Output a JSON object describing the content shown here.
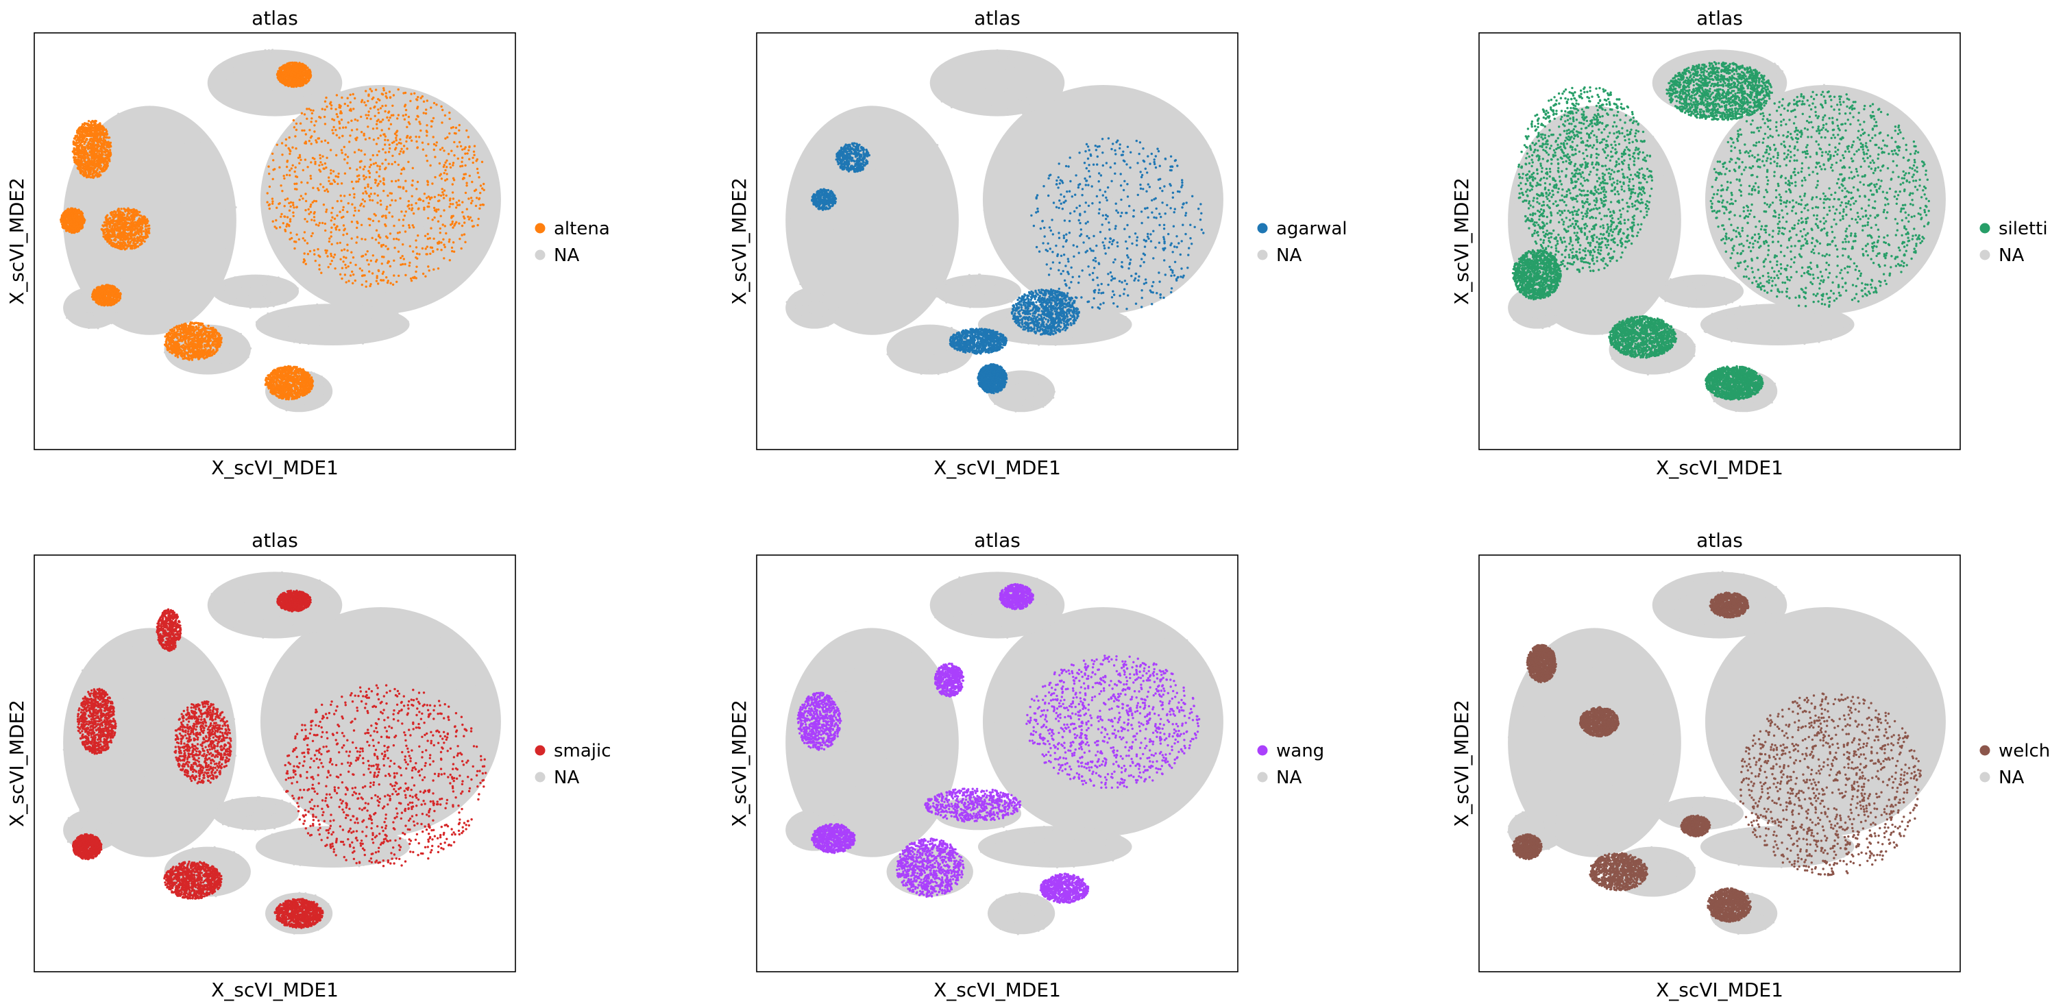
{
  "chart_data": [
    {
      "type": "scatter",
      "title": "atlas",
      "xlabel": "X_scVI_MDE1",
      "ylabel": "X_scVI_MDE2",
      "legend_position": "right",
      "grid": false,
      "ticks": false,
      "legend": [
        {
          "label": "altena",
          "color": "#ff7f0e"
        },
        {
          "label": "NA",
          "color": "#d3d3d3"
        }
      ],
      "highlight": {
        "label": "altena",
        "color": "#ff7f0e",
        "blobs": [
          [
            0.71,
            0.37,
            0.46,
            0.48,
            0.95
          ],
          [
            0.19,
            0.47,
            0.1,
            0.1,
            0.65
          ],
          [
            0.33,
            0.74,
            0.12,
            0.09,
            0.85
          ],
          [
            0.12,
            0.28,
            0.08,
            0.14,
            0.85
          ],
          [
            0.08,
            0.45,
            0.05,
            0.06,
            0.6
          ],
          [
            0.53,
            0.84,
            0.1,
            0.08,
            0.85
          ],
          [
            0.54,
            0.1,
            0.07,
            0.06,
            0.7
          ],
          [
            0.15,
            0.63,
            0.06,
            0.05,
            0.5
          ]
        ]
      }
    },
    {
      "type": "scatter",
      "title": "atlas",
      "xlabel": "X_scVI_MDE1",
      "ylabel": "X_scVI_MDE2",
      "legend_position": "right",
      "grid": false,
      "ticks": false,
      "legend": [
        {
          "label": "agarwal",
          "color": "#1f77b4"
        },
        {
          "label": "NA",
          "color": "#d3d3d3"
        }
      ],
      "highlight": {
        "label": "agarwal",
        "color": "#1f77b4",
        "blobs": [
          [
            0.75,
            0.46,
            0.36,
            0.42,
            0.35
          ],
          [
            0.6,
            0.67,
            0.14,
            0.11,
            0.6
          ],
          [
            0.46,
            0.74,
            0.12,
            0.06,
            0.55
          ],
          [
            0.49,
            0.83,
            0.06,
            0.07,
            0.6
          ],
          [
            0.2,
            0.3,
            0.07,
            0.07,
            0.25
          ],
          [
            0.14,
            0.4,
            0.05,
            0.05,
            0.2
          ]
        ]
      }
    },
    {
      "type": "scatter",
      "title": "atlas",
      "xlabel": "X_scVI_MDE1",
      "ylabel": "X_scVI_MDE2",
      "legend_position": "right",
      "grid": false,
      "ticks": false,
      "legend": [
        {
          "label": "siletti",
          "color": "#279e68"
        },
        {
          "label": "NA",
          "color": "#d3d3d3"
        }
      ],
      "highlight": {
        "label": "siletti",
        "color": "#279e68",
        "blobs": [
          [
            0.71,
            0.4,
            0.46,
            0.52,
            0.95
          ],
          [
            0.22,
            0.35,
            0.28,
            0.45,
            0.9
          ],
          [
            0.5,
            0.14,
            0.22,
            0.14,
            0.9
          ],
          [
            0.34,
            0.73,
            0.14,
            0.1,
            0.9
          ],
          [
            0.53,
            0.84,
            0.12,
            0.08,
            0.9
          ],
          [
            0.12,
            0.58,
            0.1,
            0.12,
            0.7
          ]
        ]
      }
    },
    {
      "type": "scatter",
      "title": "atlas",
      "xlabel": "X_scVI_MDE1",
      "ylabel": "X_scVI_MDE2",
      "legend_position": "right",
      "grid": false,
      "ticks": false,
      "legend": [
        {
          "label": "smajic",
          "color": "#d62728"
        },
        {
          "label": "NA",
          "color": "#d3d3d3"
        }
      ],
      "highlight": {
        "label": "smajic",
        "color": "#d62728",
        "blobs": [
          [
            0.73,
            0.53,
            0.42,
            0.44,
            0.85
          ],
          [
            0.35,
            0.45,
            0.12,
            0.2,
            0.65
          ],
          [
            0.33,
            0.78,
            0.12,
            0.09,
            0.8
          ],
          [
            0.13,
            0.4,
            0.08,
            0.16,
            0.7
          ],
          [
            0.55,
            0.86,
            0.1,
            0.07,
            0.8
          ],
          [
            0.11,
            0.7,
            0.06,
            0.06,
            0.6
          ],
          [
            0.54,
            0.11,
            0.07,
            0.05,
            0.6
          ],
          [
            0.28,
            0.18,
            0.05,
            0.1,
            0.4
          ]
        ]
      }
    },
    {
      "type": "scatter",
      "title": "atlas",
      "xlabel": "X_scVI_MDE1",
      "ylabel": "X_scVI_MDE2",
      "legend_position": "right",
      "grid": false,
      "ticks": false,
      "legend": [
        {
          "label": "wang",
          "color": "#aa40fc"
        },
        {
          "label": "NA",
          "color": "#d3d3d3"
        }
      ],
      "highlight": {
        "label": "wang",
        "color": "#aa40fc",
        "blobs": [
          [
            0.74,
            0.4,
            0.36,
            0.32,
            0.9
          ],
          [
            0.36,
            0.75,
            0.14,
            0.14,
            0.7
          ],
          [
            0.13,
            0.4,
            0.09,
            0.14,
            0.6
          ],
          [
            0.16,
            0.68,
            0.09,
            0.07,
            0.6
          ],
          [
            0.45,
            0.6,
            0.2,
            0.08,
            0.5
          ],
          [
            0.64,
            0.8,
            0.1,
            0.07,
            0.6
          ],
          [
            0.54,
            0.1,
            0.07,
            0.06,
            0.5
          ],
          [
            0.4,
            0.3,
            0.06,
            0.08,
            0.4
          ]
        ]
      }
    },
    {
      "type": "scatter",
      "title": "atlas",
      "xlabel": "X_scVI_MDE1",
      "ylabel": "X_scVI_MDE2",
      "legend_position": "right",
      "grid": false,
      "ticks": false,
      "legend": [
        {
          "label": "welch",
          "color": "#8c564b"
        },
        {
          "label": "NA",
          "color": "#d3d3d3"
        }
      ],
      "highlight": {
        "label": "welch",
        "color": "#8c564b",
        "blobs": [
          [
            0.73,
            0.55,
            0.38,
            0.44,
            0.95
          ],
          [
            0.29,
            0.76,
            0.12,
            0.09,
            0.9
          ],
          [
            0.52,
            0.84,
            0.09,
            0.08,
            0.9
          ],
          [
            0.25,
            0.4,
            0.08,
            0.07,
            0.8
          ],
          [
            0.13,
            0.26,
            0.06,
            0.09,
            0.9
          ],
          [
            0.52,
            0.12,
            0.08,
            0.06,
            0.8
          ],
          [
            0.1,
            0.7,
            0.06,
            0.06,
            0.6
          ],
          [
            0.45,
            0.65,
            0.06,
            0.05,
            0.5
          ]
        ]
      }
    }
  ]
}
